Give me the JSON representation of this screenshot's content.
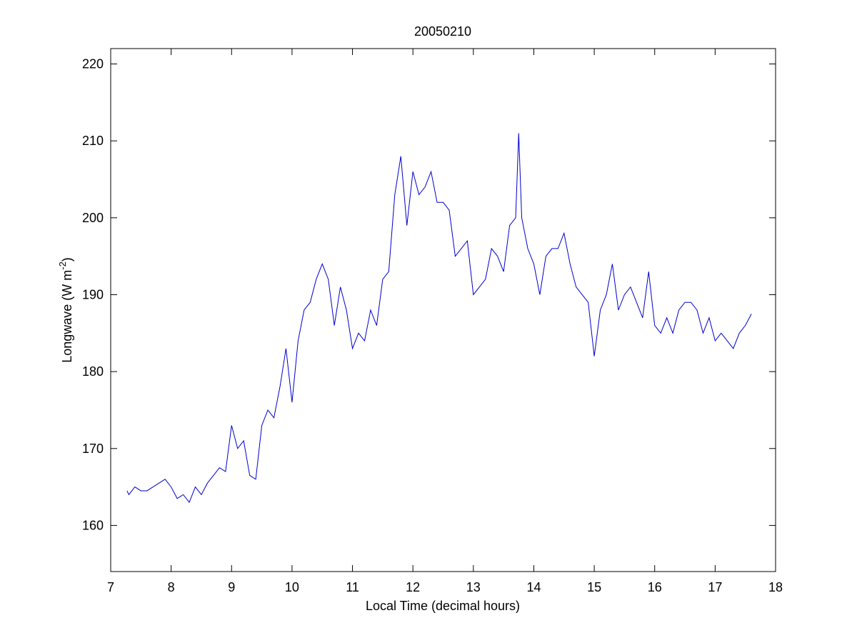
{
  "chart_data": {
    "type": "line",
    "title": "20050210",
    "xlabel": "Local Time (decimal hours)",
    "ylabel": {
      "text": "Longwave (W m",
      "superscript": "-2",
      "suffix": ")"
    },
    "xlim": [
      7,
      18
    ],
    "xticks": [
      7,
      8,
      9,
      10,
      11,
      12,
      13,
      14,
      15,
      16,
      17,
      18
    ],
    "ylim": [
      154,
      222
    ],
    "yticks": [
      160,
      170,
      180,
      190,
      200,
      210,
      220
    ],
    "grid": false,
    "x": [
      7.27,
      7.3,
      7.4,
      7.5,
      7.6,
      7.7,
      7.8,
      7.9,
      8.0,
      8.1,
      8.2,
      8.3,
      8.4,
      8.5,
      8.6,
      8.7,
      8.8,
      8.9,
      9.0,
      9.1,
      9.2,
      9.3,
      9.4,
      9.5,
      9.6,
      9.7,
      9.8,
      9.9,
      10.0,
      10.1,
      10.2,
      10.3,
      10.4,
      10.5,
      10.6,
      10.7,
      10.8,
      10.9,
      11.0,
      11.1,
      11.2,
      11.3,
      11.4,
      11.5,
      11.6,
      11.7,
      11.8,
      11.9,
      12.0,
      12.1,
      12.2,
      12.3,
      12.4,
      12.5,
      12.6,
      12.7,
      12.8,
      12.9,
      13.0,
      13.1,
      13.2,
      13.3,
      13.4,
      13.5,
      13.6,
      13.7,
      13.75,
      13.8,
      13.9,
      14.0,
      14.1,
      14.2,
      14.3,
      14.4,
      14.5,
      14.6,
      14.7,
      14.8,
      14.9,
      15.0,
      15.1,
      15.2,
      15.3,
      15.4,
      15.5,
      15.6,
      15.7,
      15.8,
      15.9,
      16.0,
      16.1,
      16.2,
      16.3,
      16.4,
      16.5,
      16.6,
      16.7,
      16.8,
      16.9,
      17.0,
      17.1,
      17.2,
      17.3,
      17.4,
      17.5,
      17.6
    ],
    "series": [
      {
        "name": "Longwave",
        "color": "#0000cc",
        "values": [
          164.5,
          164,
          165,
          164.5,
          164.5,
          165,
          165.5,
          166,
          165,
          163.5,
          164,
          163,
          165,
          164,
          165.5,
          166.5,
          167.5,
          167,
          173,
          170,
          171,
          166.5,
          166,
          173,
          175,
          174,
          178,
          183,
          176,
          184,
          188,
          189,
          192,
          194,
          192,
          186,
          191,
          188,
          183,
          185,
          184,
          188,
          186,
          192,
          193,
          203,
          208,
          199,
          206,
          203,
          204,
          206,
          202,
          202,
          201,
          195,
          196,
          197,
          190,
          191,
          192,
          196,
          195,
          193,
          199,
          200,
          211,
          200,
          196,
          194,
          190,
          195,
          196,
          196,
          198,
          194,
          191,
          190,
          189,
          182,
          188,
          190,
          194,
          188,
          190,
          191,
          189,
          187,
          193,
          186,
          185,
          187,
          185,
          188,
          189,
          189,
          188,
          185,
          187,
          184,
          185,
          184,
          183,
          185,
          186,
          187.5
        ]
      }
    ]
  }
}
